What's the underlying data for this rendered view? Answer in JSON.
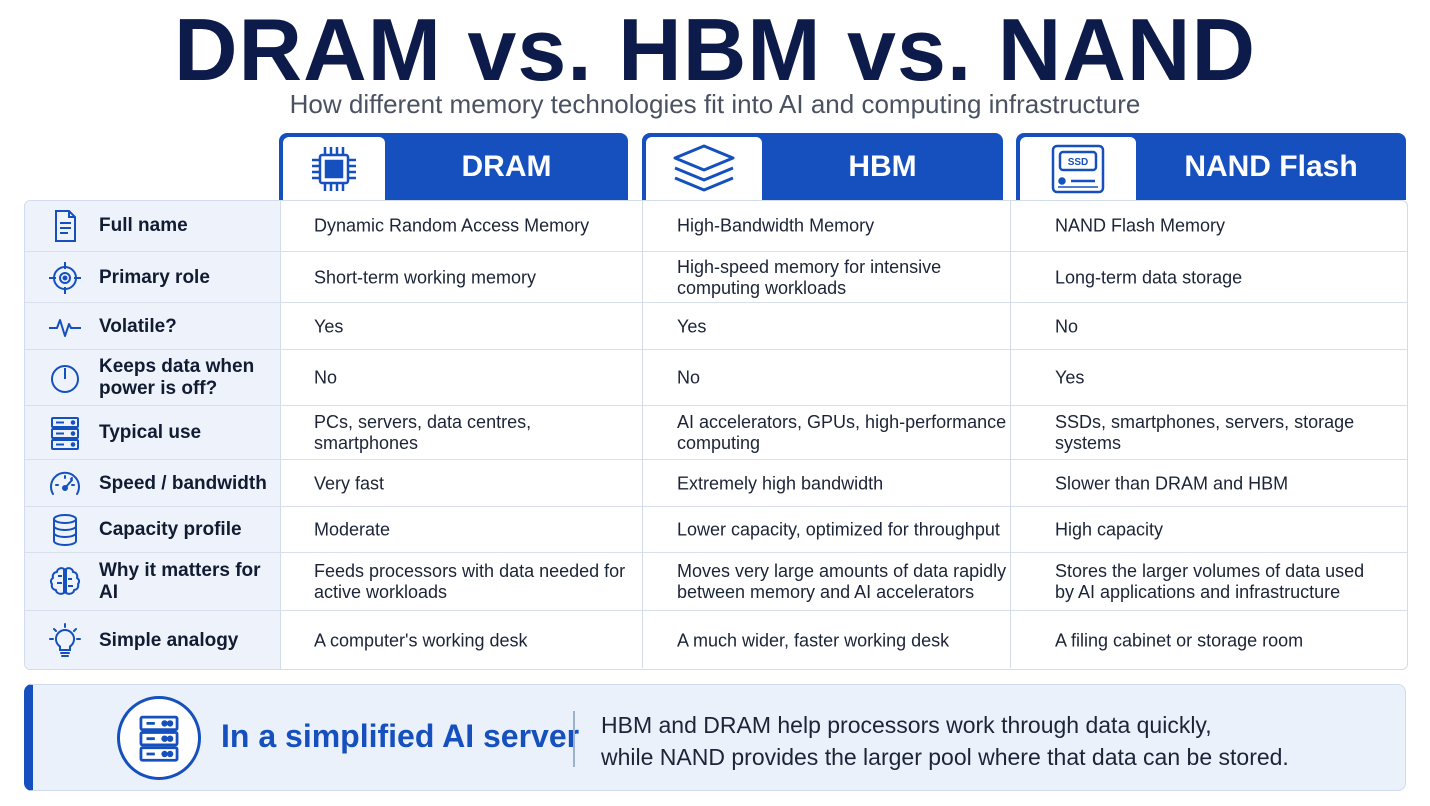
{
  "title": "DRAM vs. HBM vs. NAND",
  "subtitle": "How different memory technologies fit into AI and computing infrastructure",
  "columns": [
    {
      "label": "DRAM",
      "icon": "chip-icon"
    },
    {
      "label": "HBM",
      "icon": "stacked-layers-icon"
    },
    {
      "label": "NAND Flash",
      "icon": "ssd-icon"
    }
  ],
  "rows": [
    {
      "label": "Full name",
      "icon": "document-icon",
      "cells": [
        "Dynamic Random Access Memory",
        "High-Bandwidth Memory",
        "NAND Flash Memory"
      ]
    },
    {
      "label": "Primary role",
      "icon": "target-icon",
      "cells": [
        "Short-term working memory",
        "High-speed memory for intensive computing workloads",
        "Long-term data storage"
      ]
    },
    {
      "label": "Volatile?",
      "icon": "pulse-icon",
      "cells": [
        "Yes",
        "Yes",
        "No"
      ]
    },
    {
      "label": "Keeps data when power is off?",
      "icon": "power-icon",
      "cells": [
        "No",
        "No",
        "Yes"
      ]
    },
    {
      "label": "Typical use",
      "icon": "server-icon",
      "cells": [
        "PCs, servers, data centres, smartphones",
        "AI accelerators, GPUs, high-performance computing",
        "SSDs, smartphones, servers, storage systems"
      ]
    },
    {
      "label": "Speed / bandwidth",
      "icon": "speedometer-icon",
      "cells": [
        "Very fast",
        "Extremely high bandwidth",
        "Slower than DRAM and HBM"
      ]
    },
    {
      "label": "Capacity profile",
      "icon": "database-icon",
      "cells": [
        "Moderate",
        "Lower capacity, optimized for throughput",
        "High capacity"
      ]
    },
    {
      "label": "Why it matters for AI",
      "icon": "brain-icon",
      "cells": [
        "Feeds processors with data needed for active workloads",
        "Moves very large amounts of data rapidly between memory and AI accelerators",
        "Stores the larger volumes of data used by AI applications and infrastructure"
      ]
    },
    {
      "label": "Simple analogy",
      "icon": "lightbulb-icon",
      "cells": [
        "A computer's working desk",
        "A much wider, faster working desk",
        "A filing cabinet or storage room"
      ]
    }
  ],
  "footer": {
    "heading": "In a simplified AI server",
    "line1": "HBM and DRAM help processors work through data quickly,",
    "line2": "while NAND provides the larger pool where that data can be stored.",
    "icon": "server-icon"
  },
  "colors": {
    "accent": "#1550be",
    "title": "#0d1b4a",
    "row_header_bg": "#eef3fb",
    "footer_bg": "#eaf1fb"
  }
}
